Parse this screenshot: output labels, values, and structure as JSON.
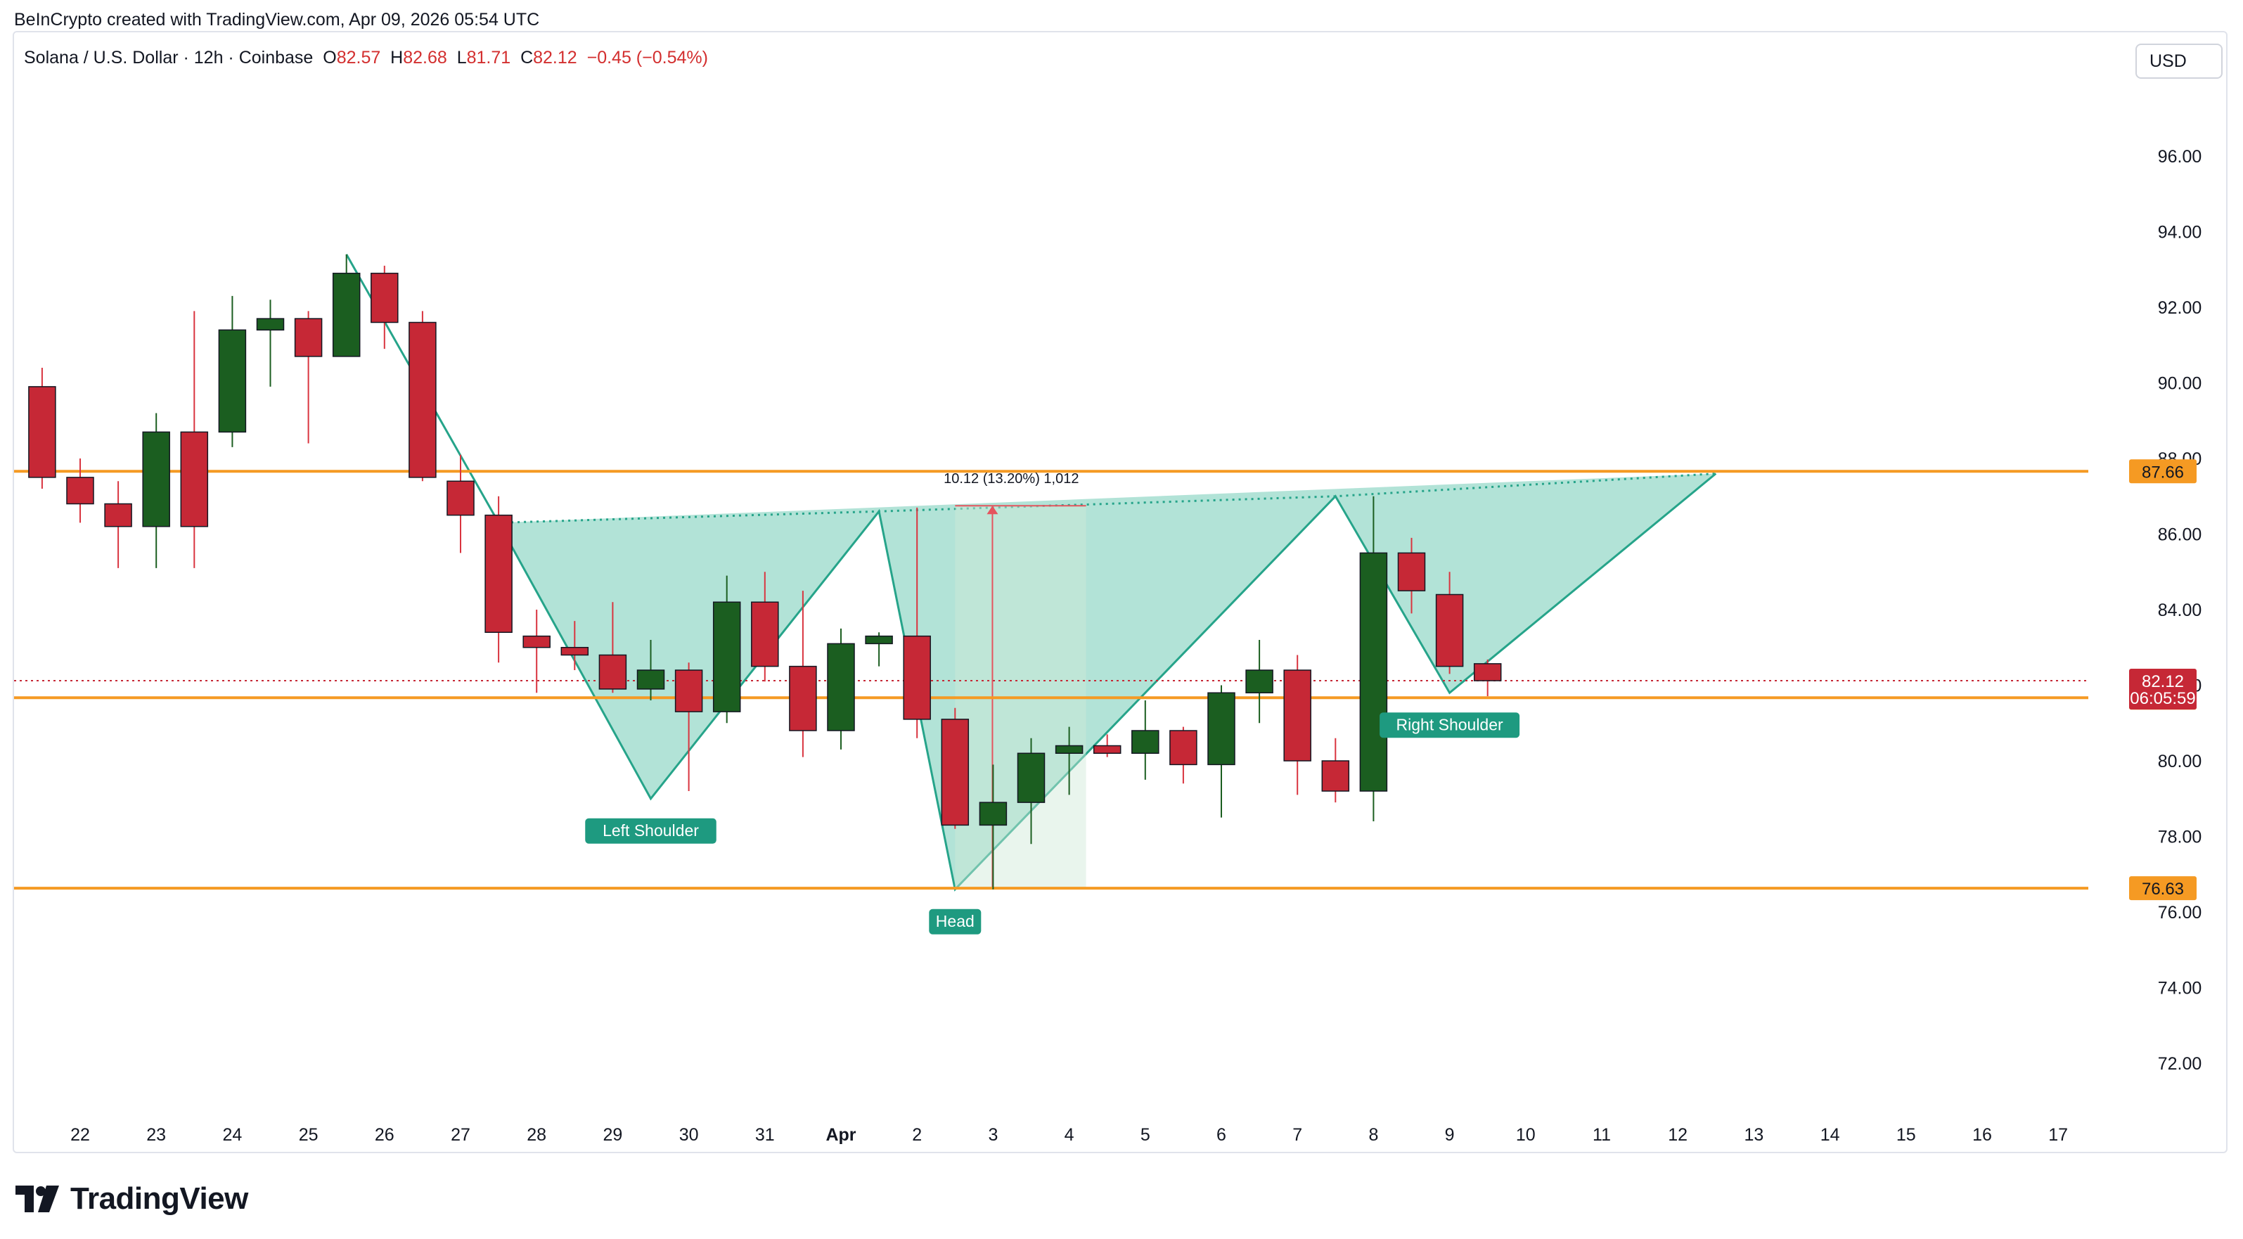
{
  "header": {
    "credit": "BeInCrypto created with TradingView.com, Apr 09, 2026 05:54 UTC"
  },
  "symbol": {
    "name": "Solana / U.S. Dollar · 12h · Coinbase",
    "open_label": "O",
    "open": "82.57",
    "high_label": "H",
    "high": "82.68",
    "low_label": "L",
    "low": "81.71",
    "close_label": "C",
    "close": "82.12",
    "change": "−0.45 (−0.54%)"
  },
  "toolbar": {
    "currency": "USD"
  },
  "brand": {
    "name": "TradingView"
  },
  "colors": {
    "up": "#1b5e20",
    "down": "#c62836",
    "level": "#f59a23",
    "pattern_fill": "#9fdccd",
    "pattern_line": "#26a48a",
    "label_bg": "#1e9a80"
  },
  "chart_data": {
    "type": "candlestick",
    "title": "Solana / U.S. Dollar · 12h · Coinbase",
    "ylim": [
      70.8,
      97.6
    ],
    "y_ticks": [
      "96.00",
      "94.00",
      "92.00",
      "90.00",
      "88.00",
      "86.00",
      "84.00",
      "82.00",
      "80.00",
      "78.00",
      "76.00",
      "74.00",
      "72.00"
    ],
    "x_tick_labels": [
      "22",
      "23",
      "24",
      "25",
      "26",
      "27",
      "28",
      "29",
      "30",
      "31",
      "Apr",
      "2",
      "3",
      "4",
      "5",
      "6",
      "7",
      "8",
      "9",
      "10",
      "11",
      "12",
      "13",
      "14",
      "15",
      "16",
      "17"
    ],
    "candles": [
      {
        "t": "Mar 21 12:00",
        "o": 89.9,
        "h": 90.4,
        "l": 87.2,
        "c": 87.5
      },
      {
        "t": "Mar 22 00:00",
        "o": 87.5,
        "h": 88.0,
        "l": 86.3,
        "c": 86.8
      },
      {
        "t": "Mar 22 12:00",
        "o": 86.8,
        "h": 87.4,
        "l": 85.1,
        "c": 86.2
      },
      {
        "t": "Mar 23 00:00",
        "o": 86.2,
        "h": 89.2,
        "l": 85.1,
        "c": 88.7
      },
      {
        "t": "Mar 23 12:00",
        "o": 88.7,
        "h": 91.9,
        "l": 85.1,
        "c": 86.2
      },
      {
        "t": "Mar 24 00:00",
        "o": 88.7,
        "h": 92.3,
        "l": 88.3,
        "c": 91.4
      },
      {
        "t": "Mar 24 12:00",
        "o": 91.4,
        "h": 92.2,
        "l": 89.9,
        "c": 91.7
      },
      {
        "t": "Mar 25 00:00",
        "o": 91.7,
        "h": 91.9,
        "l": 88.4,
        "c": 90.7
      },
      {
        "t": "Mar 25 12:00",
        "o": 90.7,
        "h": 93.4,
        "l": 90.7,
        "c": 92.9
      },
      {
        "t": "Mar 26 00:00",
        "o": 92.9,
        "h": 93.1,
        "l": 90.9,
        "c": 91.6
      },
      {
        "t": "Mar 26 12:00",
        "o": 91.6,
        "h": 91.9,
        "l": 87.4,
        "c": 87.5
      },
      {
        "t": "Mar 27 00:00",
        "o": 87.4,
        "h": 88.1,
        "l": 85.5,
        "c": 86.5
      },
      {
        "t": "Mar 27 12:00",
        "o": 86.5,
        "h": 87.0,
        "l": 82.6,
        "c": 83.4
      },
      {
        "t": "Mar 28 00:00",
        "o": 83.3,
        "h": 84.0,
        "l": 81.8,
        "c": 83.0
      },
      {
        "t": "Mar 28 12:00",
        "o": 83.0,
        "h": 83.7,
        "l": 82.4,
        "c": 82.8
      },
      {
        "t": "Mar 29 00:00",
        "o": 82.8,
        "h": 84.2,
        "l": 81.8,
        "c": 81.9
      },
      {
        "t": "Mar 29 12:00",
        "o": 81.9,
        "h": 83.2,
        "l": 81.6,
        "c": 82.4
      },
      {
        "t": "Mar 30 00:00",
        "o": 82.4,
        "h": 82.6,
        "l": 79.2,
        "c": 81.3
      },
      {
        "t": "Mar 30 12:00",
        "o": 81.3,
        "h": 84.9,
        "l": 81.0,
        "c": 84.2
      },
      {
        "t": "Mar 31 00:00",
        "o": 84.2,
        "h": 85.0,
        "l": 82.1,
        "c": 82.5
      },
      {
        "t": "Mar 31 12:00",
        "o": 82.5,
        "h": 84.5,
        "l": 80.1,
        "c": 80.8
      },
      {
        "t": "Apr 01 00:00",
        "o": 80.8,
        "h": 83.5,
        "l": 80.3,
        "c": 83.1
      },
      {
        "t": "Apr 01 12:00",
        "o": 83.1,
        "h": 83.4,
        "l": 82.5,
        "c": 83.3
      },
      {
        "t": "Apr 02 00:00",
        "o": 83.3,
        "h": 86.7,
        "l": 80.6,
        "c": 81.1
      },
      {
        "t": "Apr 02 12:00",
        "o": 81.1,
        "h": 81.4,
        "l": 78.2,
        "c": 78.3
      },
      {
        "t": "Apr 03 00:00",
        "o": 78.3,
        "h": 79.9,
        "l": 76.6,
        "c": 78.9
      },
      {
        "t": "Apr 03 12:00",
        "o": 78.9,
        "h": 80.6,
        "l": 77.8,
        "c": 80.2
      },
      {
        "t": "Apr 04 00:00",
        "o": 80.2,
        "h": 80.9,
        "l": 79.1,
        "c": 80.4
      },
      {
        "t": "Apr 04 12:00",
        "o": 80.4,
        "h": 80.7,
        "l": 80.1,
        "c": 80.2
      },
      {
        "t": "Apr 05 00:00",
        "o": 80.2,
        "h": 81.6,
        "l": 79.5,
        "c": 80.8
      },
      {
        "t": "Apr 05 12:00",
        "o": 80.8,
        "h": 80.9,
        "l": 79.4,
        "c": 79.9
      },
      {
        "t": "Apr 06 00:00",
        "o": 79.9,
        "h": 82.0,
        "l": 78.5,
        "c": 81.8
      },
      {
        "t": "Apr 06 12:00",
        "o": 81.8,
        "h": 83.2,
        "l": 81.0,
        "c": 82.4
      },
      {
        "t": "Apr 07 00:00",
        "o": 82.4,
        "h": 82.8,
        "l": 79.1,
        "c": 80.0
      },
      {
        "t": "Apr 07 12:00",
        "o": 80.0,
        "h": 80.6,
        "l": 78.9,
        "c": 79.2
      },
      {
        "t": "Apr 08 00:00",
        "o": 79.2,
        "h": 87.0,
        "l": 78.4,
        "c": 85.5
      },
      {
        "t": "Apr 08 12:00",
        "o": 85.5,
        "h": 85.9,
        "l": 83.9,
        "c": 84.5
      },
      {
        "t": "Apr 09 00:00",
        "o": 84.4,
        "h": 85.0,
        "l": 82.3,
        "c": 82.5
      },
      {
        "t": "Apr 09 12:00",
        "o": 82.57,
        "h": 82.68,
        "l": 81.71,
        "c": 82.12
      }
    ],
    "horizontal_levels": [
      {
        "value": 87.66,
        "label": "87.66"
      },
      {
        "value": 81.67,
        "label": "81.67"
      },
      {
        "value": 76.63,
        "label": "76.63"
      }
    ],
    "last_price": {
      "value": 82.12,
      "label": "82.12",
      "countdown": "06:05:59"
    },
    "pattern": {
      "type": "inverse head and shoulders",
      "points": [
        {
          "t": "Mar 25 12:00",
          "y": 93.4
        },
        {
          "t": "Mar 27 12:00",
          "y": 86.3
        },
        {
          "t": "Mar 29 12:00",
          "y": 79.0
        },
        {
          "t": "Apr 01 12:00",
          "y": 86.6
        },
        {
          "t": "Apr 02 12:00",
          "y": 76.6
        },
        {
          "t": "Apr 07 12:00",
          "y": 87.0
        },
        {
          "t": "Apr 09 00:00",
          "y": 81.8
        },
        {
          "t": "Apr 12 12:00",
          "y": 87.6
        }
      ],
      "labels": [
        {
          "text": "Left Shoulder",
          "t": "Mar 29 12:00",
          "y": 79.0
        },
        {
          "text": "Head",
          "t": "Apr 02 12:00",
          "y": 76.6
        },
        {
          "text": "Right Shoulder",
          "t": "Apr 09 00:00",
          "y": 81.8
        }
      ]
    },
    "measure": {
      "label": "10.12 (13.20%) 1,012",
      "t_start": "Apr 02 12:00",
      "t_end": "Apr 04 00:00",
      "y_from": 76.63,
      "y_to": 86.75
    }
  }
}
